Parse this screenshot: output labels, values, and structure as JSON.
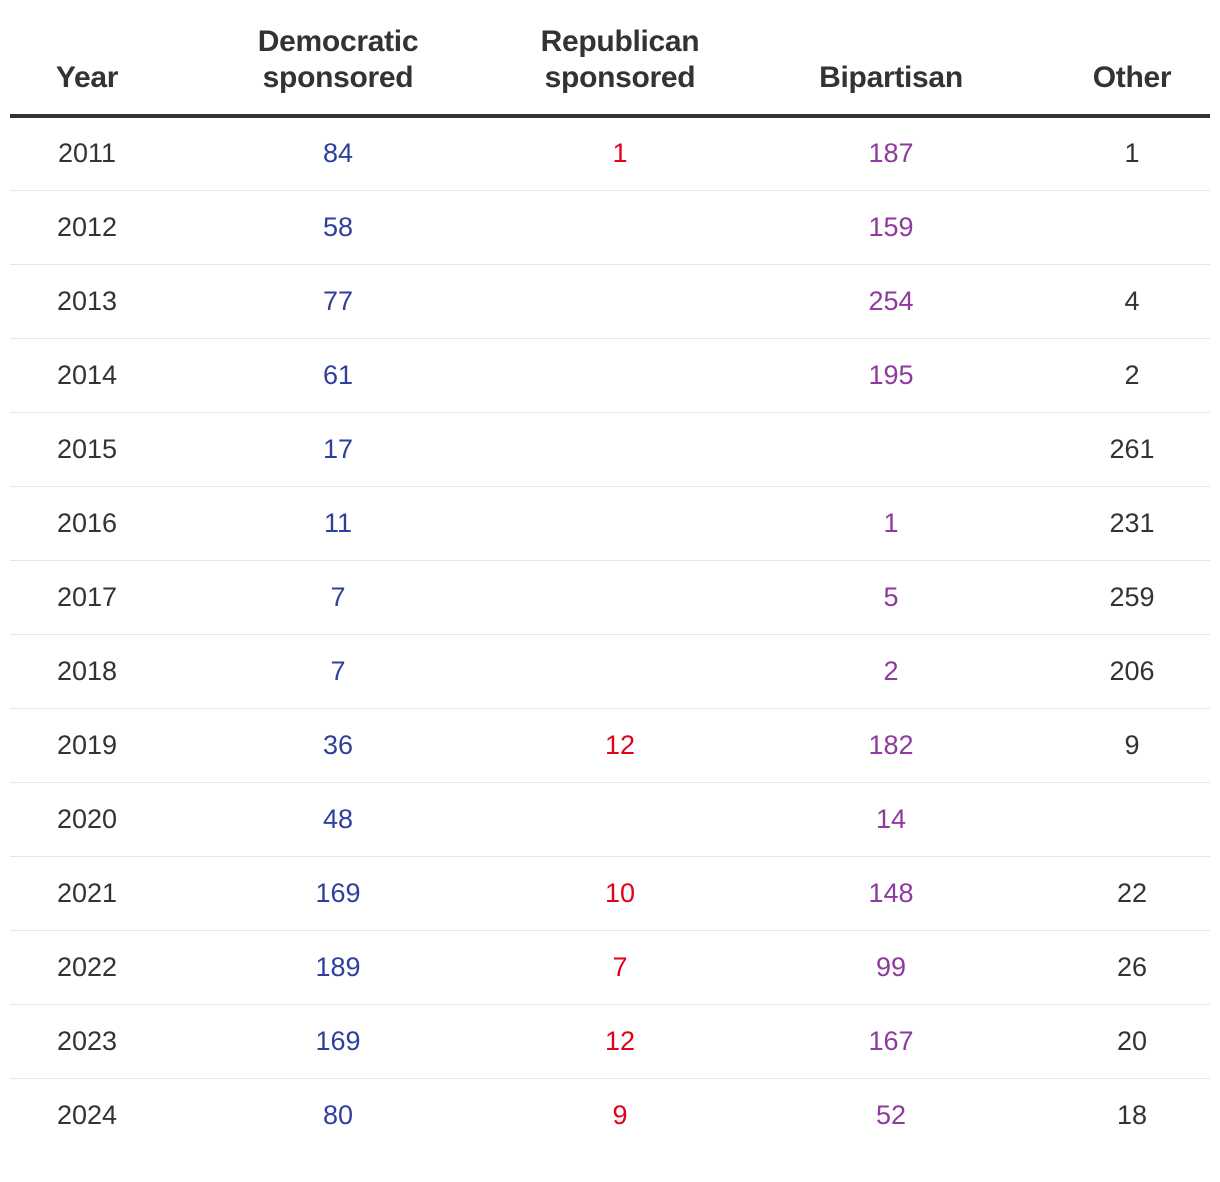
{
  "chart_data": {
    "type": "table",
    "columns": [
      "Year",
      "Democratic\nsponsored",
      "Republican\nsponsored",
      "Bipartisan",
      "Other"
    ],
    "column_colors": {
      "democratic": "#2e3f9e",
      "republican": "#e3001b",
      "bipartisan": "#8e3a9e",
      "other": "#333333",
      "year": "#333333"
    },
    "rows": [
      {
        "year": "2011",
        "democratic": "84",
        "republican": "1",
        "bipartisan": "187",
        "other": "1"
      },
      {
        "year": "2012",
        "democratic": "58",
        "republican": "",
        "bipartisan": "159",
        "other": ""
      },
      {
        "year": "2013",
        "democratic": "77",
        "republican": "",
        "bipartisan": "254",
        "other": "4"
      },
      {
        "year": "2014",
        "democratic": "61",
        "republican": "",
        "bipartisan": "195",
        "other": "2"
      },
      {
        "year": "2015",
        "democratic": "17",
        "republican": "",
        "bipartisan": "",
        "other": "261"
      },
      {
        "year": "2016",
        "democratic": "11",
        "republican": "",
        "bipartisan": "1",
        "other": "231"
      },
      {
        "year": "2017",
        "democratic": "7",
        "republican": "",
        "bipartisan": "5",
        "other": "259"
      },
      {
        "year": "2018",
        "democratic": "7",
        "republican": "",
        "bipartisan": "2",
        "other": "206"
      },
      {
        "year": "2019",
        "democratic": "36",
        "republican": "12",
        "bipartisan": "182",
        "other": "9"
      },
      {
        "year": "2020",
        "democratic": "48",
        "republican": "",
        "bipartisan": "14",
        "other": ""
      },
      {
        "year": "2021",
        "democratic": "169",
        "republican": "10",
        "bipartisan": "148",
        "other": "22"
      },
      {
        "year": "2022",
        "democratic": "189",
        "republican": "7",
        "bipartisan": "99",
        "other": "26"
      },
      {
        "year": "2023",
        "democratic": "169",
        "republican": "12",
        "bipartisan": "167",
        "other": "20"
      },
      {
        "year": "2024",
        "democratic": "80",
        "republican": "9",
        "bipartisan": "52",
        "other": "18"
      }
    ]
  }
}
